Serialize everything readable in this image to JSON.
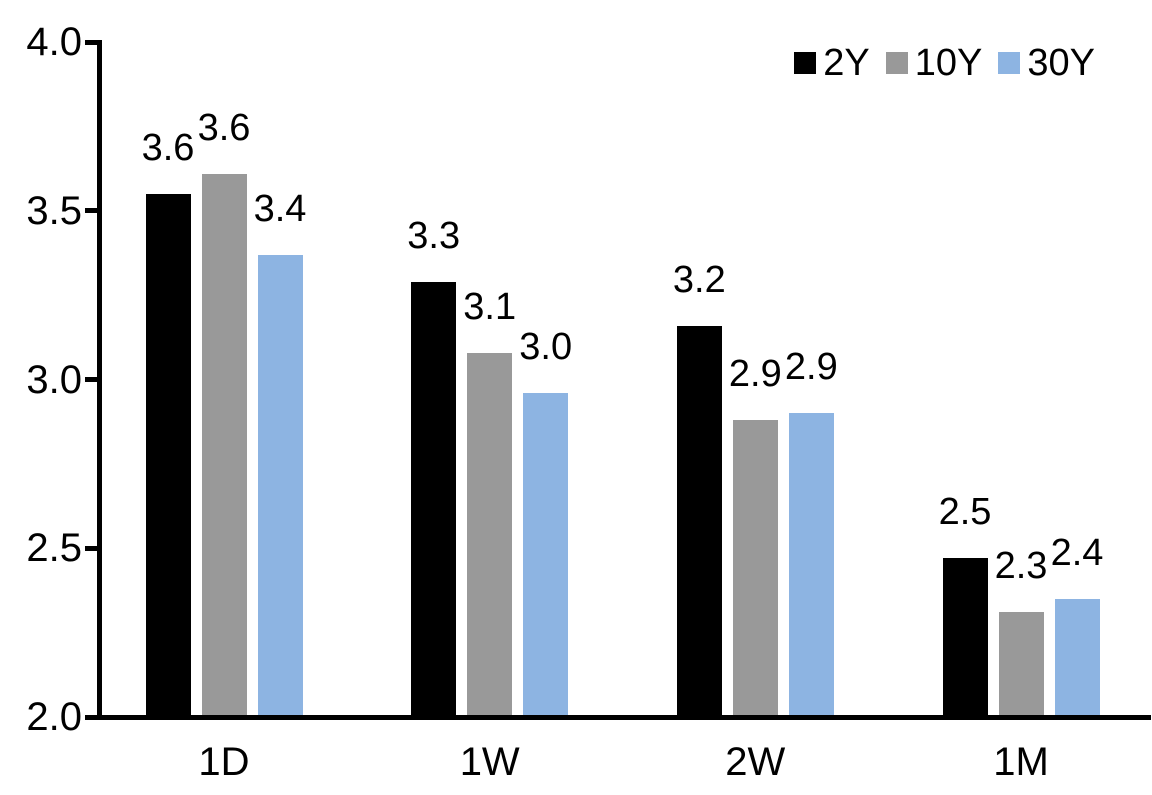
{
  "chart_data": {
    "type": "bar",
    "title": "",
    "xlabel": "",
    "ylabel": "",
    "categories": [
      "1D",
      "1W",
      "2W",
      "1M"
    ],
    "series": [
      {
        "name": "2Y",
        "color": "#000000",
        "values": [
          3.55,
          3.29,
          3.16,
          2.47
        ],
        "labels": [
          "3.6",
          "3.3",
          "3.2",
          "2.5"
        ]
      },
      {
        "name": "10Y",
        "color": "#999999",
        "values": [
          3.61,
          3.08,
          2.88,
          2.31
        ],
        "labels": [
          "3.6",
          "3.1",
          "2.9",
          "2.3"
        ]
      },
      {
        "name": "30Y",
        "color": "#8DB4E2",
        "values": [
          3.37,
          2.96,
          2.9,
          2.35
        ],
        "labels": [
          "3.4",
          "3.0",
          "2.9",
          "2.4"
        ]
      }
    ],
    "ylim": [
      2.0,
      4.0
    ],
    "ytick_values": [
      4.0,
      3.5,
      3.0,
      2.5,
      2.0
    ],
    "ytick_labels": [
      "4.0",
      "3.5",
      "3.0",
      "2.5",
      "2.0"
    ],
    "grid": false,
    "legend_position": "top-right",
    "data_labels": true,
    "axis_color": "#000000",
    "text_color": "#000000",
    "background": "#FFFFFF"
  }
}
